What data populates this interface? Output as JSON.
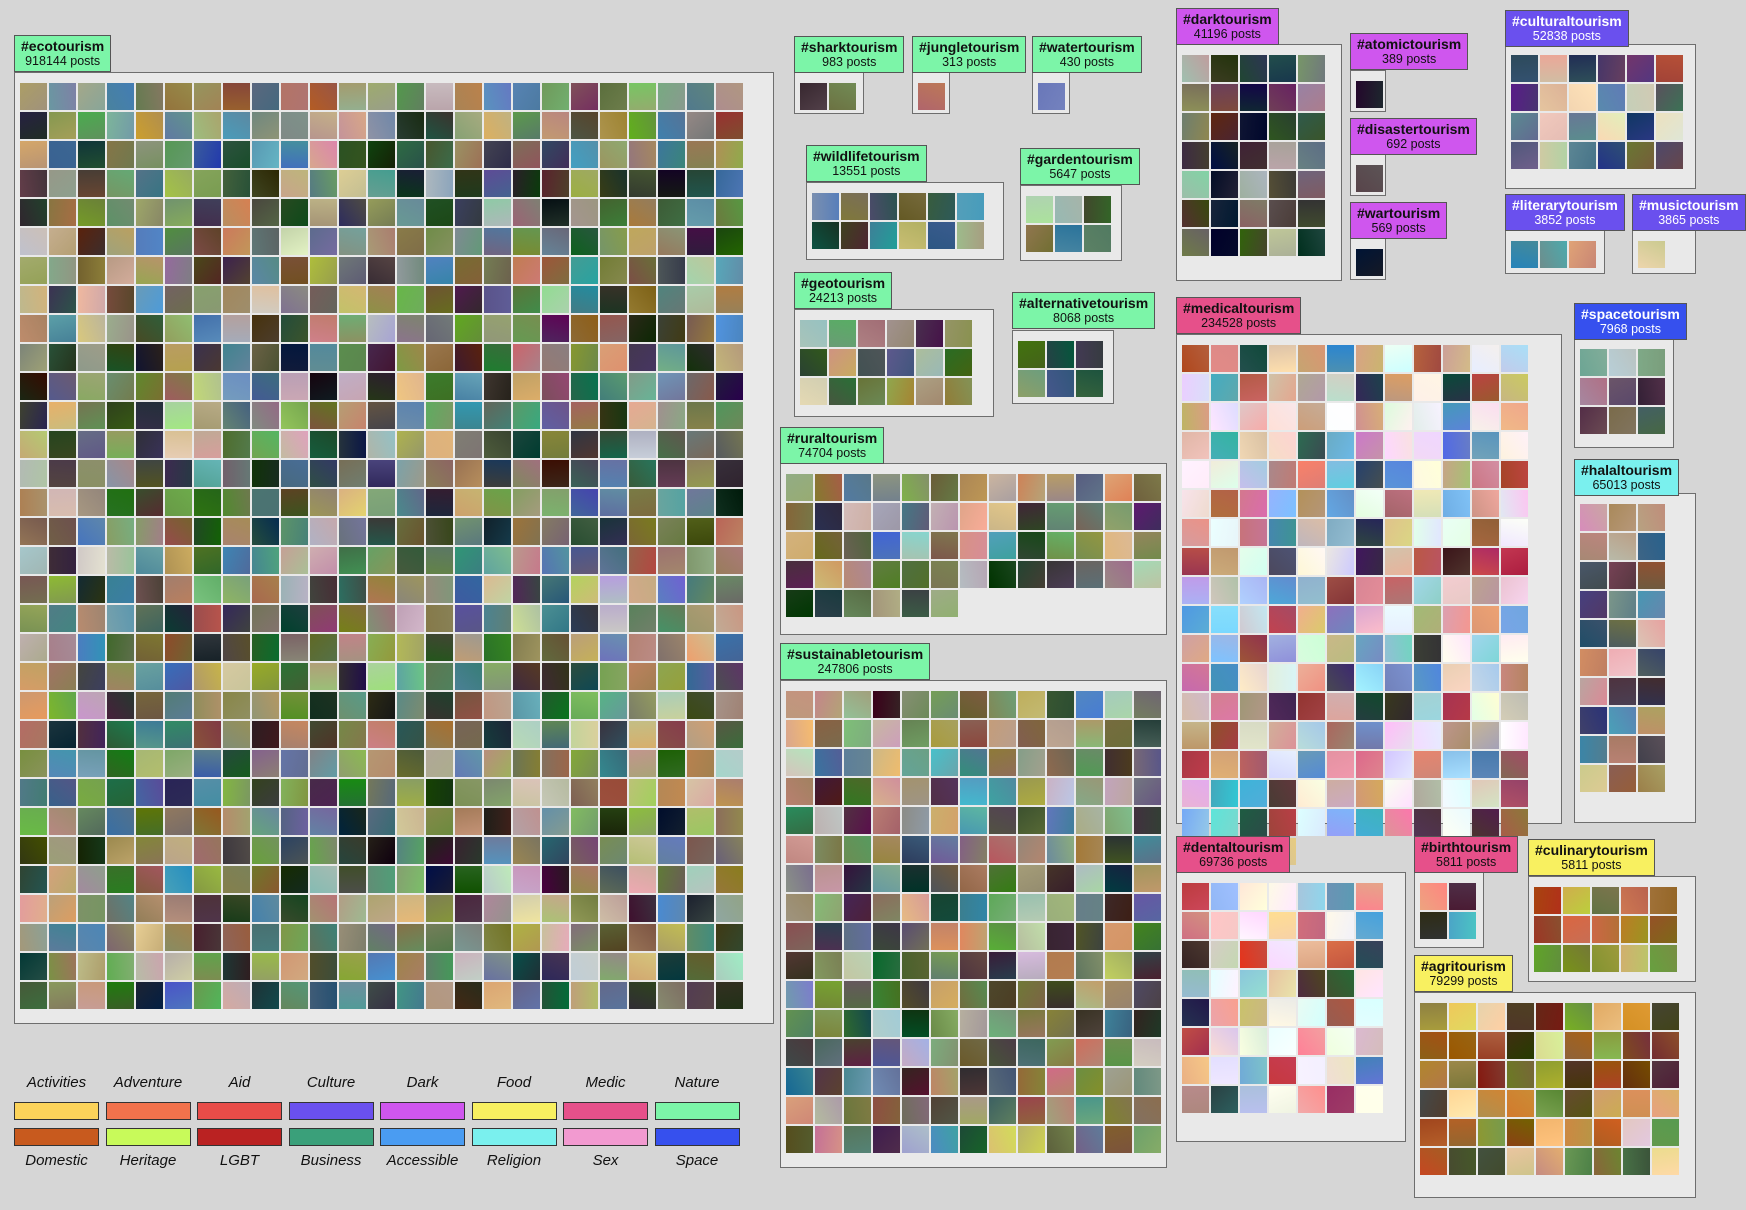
{
  "clusters": [
    {
      "id": "ecotourism",
      "tag": "#ecotourism",
      "count": "918144 posts",
      "color": "#7cf5a8",
      "panel": [
        14,
        72,
        760,
        952
      ],
      "label": [
        14,
        35
      ],
      "cell": 27
    },
    {
      "id": "sharktourism",
      "tag": "#sharktourism",
      "count": "983 posts",
      "color": "#7cf5a8",
      "panel": [
        794,
        72,
        70,
        42
      ],
      "label": [
        794,
        36
      ],
      "cell": 27
    },
    {
      "id": "jungletourism",
      "tag": "#jungletourism",
      "count": "313 posts",
      "color": "#7cf5a8",
      "panel": [
        912,
        72,
        38,
        42
      ],
      "label": [
        912,
        36
      ],
      "cell": 27
    },
    {
      "id": "watertourism",
      "tag": "#watertourism",
      "count": "430 posts",
      "color": "#7cf5a8",
      "panel": [
        1032,
        72,
        38,
        42
      ],
      "label": [
        1032,
        36
      ],
      "cell": 27
    },
    {
      "id": "wildlifetourism",
      "tag": "#wildlifetourism",
      "count": "13551 posts",
      "color": "#7cf5a8",
      "panel": [
        806,
        182,
        198,
        78
      ],
      "label": [
        806,
        145
      ],
      "cell": 27
    },
    {
      "id": "gardentourism",
      "tag": "#gardentourism",
      "count": "5647 posts",
      "color": "#7cf5a8",
      "panel": [
        1020,
        185,
        102,
        76
      ],
      "label": [
        1020,
        148
      ],
      "cell": 27
    },
    {
      "id": "geotourism",
      "tag": "#geotourism",
      "count": "24213 posts",
      "color": "#7cf5a8",
      "panel": [
        794,
        309,
        200,
        108
      ],
      "label": [
        794,
        272
      ],
      "cell": 27
    },
    {
      "id": "alternativetourism",
      "tag": "#alternativetourism",
      "count": "8068 posts",
      "color": "#7cf5a8",
      "panel": [
        1012,
        330,
        102,
        74
      ],
      "label": [
        1012,
        292
      ],
      "cell": 27
    },
    {
      "id": "ruraltourism",
      "tag": "#ruraltourism",
      "count": "74704 posts",
      "color": "#7cf5a8",
      "panel": [
        780,
        463,
        387,
        172
      ],
      "label": [
        780,
        427
      ],
      "cell": 27
    },
    {
      "id": "sustainabletourism",
      "tag": "#sustainabletourism",
      "count": "247806 posts",
      "color": "#7cf5a8",
      "panel": [
        780,
        680,
        387,
        488
      ],
      "label": [
        780,
        643
      ],
      "cell": 27
    },
    {
      "id": "darktourism",
      "tag": "#darktourism",
      "count": "41196 posts",
      "color": "#cf56ee",
      "panel": [
        1176,
        44,
        166,
        237
      ],
      "label": [
        1176,
        8
      ],
      "cell": 27
    },
    {
      "id": "atomictourism",
      "tag": "#atomictourism",
      "count": "389 posts",
      "color": "#cf56ee",
      "panel": [
        1350,
        70,
        36,
        42
      ],
      "label": [
        1350,
        33
      ],
      "cell": 27
    },
    {
      "id": "disastertourism",
      "tag": "#disastertourism",
      "count": "692 posts",
      "color": "#cf56ee",
      "panel": [
        1350,
        154,
        36,
        42
      ],
      "label": [
        1350,
        118
      ],
      "cell": 27
    },
    {
      "id": "wartourism",
      "tag": "#wartourism",
      "count": "569 posts",
      "color": "#cf56ee",
      "panel": [
        1350,
        238,
        36,
        42
      ],
      "label": [
        1350,
        202
      ],
      "cell": 27
    },
    {
      "id": "culturaltourism",
      "tag": "#culturaltourism",
      "count": "52838 posts",
      "color": "#6a50ee",
      "panel": [
        1505,
        44,
        191,
        145
      ],
      "label": [
        1505,
        10
      ],
      "cell": 27
    },
    {
      "id": "literarytourism",
      "tag": "#literarytourism",
      "count": "3852 posts",
      "color": "#6a50ee",
      "panel": [
        1505,
        230,
        100,
        44
      ],
      "label": [
        1505,
        194
      ],
      "cell": 27
    },
    {
      "id": "musictourism",
      "tag": "#musictourism",
      "count": "3865 posts",
      "color": "#6a50ee",
      "panel": [
        1632,
        230,
        64,
        44
      ],
      "label": [
        1632,
        194
      ],
      "cell": 27
    },
    {
      "id": "medicaltourism",
      "tag": "#medicaltourism",
      "count": "234528 posts",
      "color": "#e6508a",
      "panel": [
        1176,
        334,
        386,
        490
      ],
      "label": [
        1176,
        297
      ],
      "cell": 27
    },
    {
      "id": "spacetourism",
      "tag": "#spacetourism",
      "count": "7968 posts",
      "color": "#3650ee",
      "panel": [
        1574,
        338,
        100,
        110
      ],
      "label": [
        1574,
        303
      ],
      "cell": 27
    },
    {
      "id": "halaltourism",
      "tag": "#halaltourism",
      "count": "65013 posts",
      "color": "#7af0ee",
      "panel": [
        1574,
        493,
        122,
        330
      ],
      "label": [
        1574,
        459
      ],
      "cell": 27
    },
    {
      "id": "dentaltourism",
      "tag": "#dentaltourism",
      "count": "69736 posts",
      "color": "#e6508a",
      "panel": [
        1176,
        872,
        230,
        270
      ],
      "label": [
        1176,
        836
      ],
      "cell": 27
    },
    {
      "id": "birthtourism",
      "tag": "#birthtourism",
      "count": "5811 posts",
      "color": "#e6508a",
      "panel": [
        1414,
        872,
        70,
        76
      ],
      "label": [
        1414,
        836
      ],
      "cell": 27
    },
    {
      "id": "culinarytourism",
      "tag": "#culinarytourism",
      "count": "5811 posts",
      "color": "#f8f060",
      "panel": [
        1528,
        876,
        168,
        106
      ],
      "label": [
        1528,
        839
      ],
      "cell": 27
    },
    {
      "id": "agritourism",
      "tag": "#agritourism",
      "count": "79299 posts",
      "color": "#f8f060",
      "panel": [
        1414,
        992,
        282,
        206
      ],
      "label": [
        1414,
        955
      ],
      "cell": 27
    }
  ],
  "legend": [
    {
      "top": "Activities",
      "top_color": "#fcd35a",
      "bottom": "Domestic",
      "bottom_color": "#c85a1e"
    },
    {
      "top": "Adventure",
      "top_color": "#f2724c",
      "bottom": "Heritage",
      "bottom_color": "#c8fa5a"
    },
    {
      "top": "Aid",
      "top_color": "#e84c48",
      "bottom": "LGBT",
      "bottom_color": "#ba2222"
    },
    {
      "top": "Culture",
      "top_color": "#6a50ee",
      "bottom": "Business",
      "bottom_color": "#3aa07a"
    },
    {
      "top": "Dark",
      "top_color": "#cf56ee",
      "bottom": "Accessible",
      "bottom_color": "#4a9cf2"
    },
    {
      "top": "Food",
      "top_color": "#f8f060",
      "bottom": "Religion",
      "bottom_color": "#7af0ee"
    },
    {
      "top": "Medic",
      "top_color": "#e6508a",
      "bottom": "Sex",
      "bottom_color": "#f29ad0"
    },
    {
      "top": "Nature",
      "top_color": "#7cf5a8",
      "bottom": "Space",
      "bottom_color": "#3650ee"
    }
  ]
}
